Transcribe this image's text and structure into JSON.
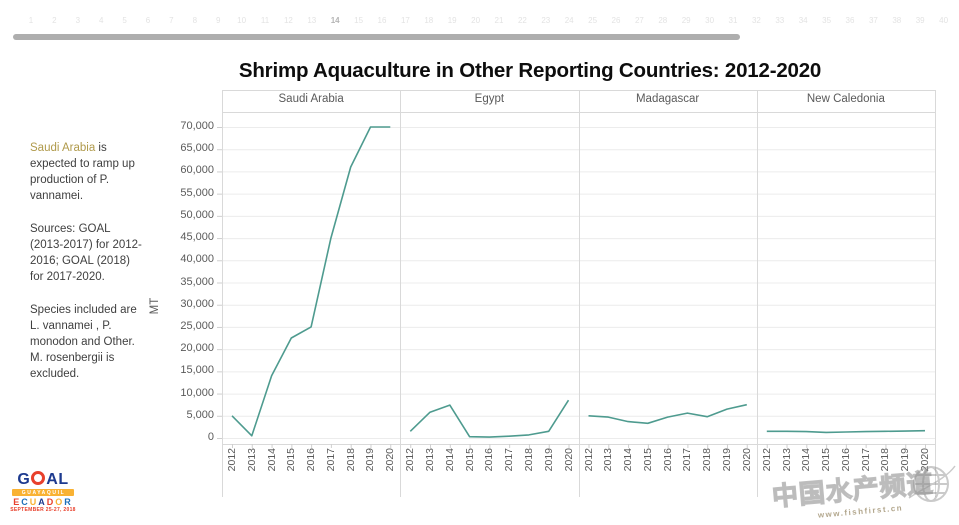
{
  "top_strip": {
    "slide_numbers": [
      "1",
      "2",
      "3",
      "4",
      "5",
      "6",
      "7",
      "8",
      "9",
      "10",
      "11",
      "12",
      "13",
      "14",
      "15",
      "16",
      "17",
      "18",
      "19",
      "20",
      "21",
      "22",
      "23",
      "24",
      "25",
      "26",
      "27",
      "28",
      "29",
      "30",
      "31",
      "32",
      "33",
      "34",
      "35",
      "36",
      "37",
      "38",
      "39",
      "40"
    ],
    "active_number": "14"
  },
  "header": {
    "title": "Shrimp Aquaculture in Other Reporting Countries: 2012-2020"
  },
  "sidebar": {
    "note_highlight": "Saudi Arabia",
    "note_rest": " is expected to ramp up production of P. vannamei.",
    "sources": "Sources: GOAL (2013-2017) for 2012-2016; GOAL (2018) for 2017-2020.",
    "species": "Species included are L. vannamei , P. monodon and Other.  M. rosenbergii is excluded."
  },
  "chart_data": {
    "type": "line",
    "title": "Shrimp Aquaculture in Other Reporting Countries: 2012-2020",
    "ylabel": "MT",
    "ylim": [
      0,
      70000
    ],
    "y_tick_step": 5000,
    "y_tick_labels": [
      "0",
      "5,000",
      "10,000",
      "15,000",
      "20,000",
      "25,000",
      "30,000",
      "35,000",
      "40,000",
      "45,000",
      "50,000",
      "55,000",
      "60,000",
      "65,000",
      "70,000"
    ],
    "x": [
      "2012",
      "2013",
      "2014",
      "2015",
      "2016",
      "2017",
      "2018",
      "2019",
      "2020"
    ],
    "panels": [
      "Saudi Arabia",
      "Egypt",
      "Madagascar",
      "New Caledonia"
    ],
    "series": [
      {
        "name": "Saudi Arabia",
        "values": [
          5000,
          500,
          14000,
          22500,
          25000,
          45000,
          61000,
          70000,
          70000
        ]
      },
      {
        "name": "Egypt",
        "values": [
          1500,
          5800,
          7400,
          300,
          200,
          400,
          700,
          1500,
          8500
        ]
      },
      {
        "name": "Madagascar",
        "values": [
          5000,
          4700,
          3700,
          3300,
          4700,
          5600,
          4800,
          6500,
          7500
        ]
      },
      {
        "name": "New Caledonia",
        "values": [
          1500,
          1500,
          1450,
          1250,
          1350,
          1450,
          1500,
          1550,
          1650
        ]
      }
    ],
    "line_color": "#4e9b8f",
    "grid": true,
    "legend": "none"
  },
  "colors": {
    "grid": "#ececec",
    "border": "#d9d9d9",
    "tick": "#cfcfcf",
    "axis_text": "#5a5a5a",
    "highlight_gold": "#b09a4b"
  },
  "footer_logo": {
    "word_g": "G",
    "word_a": "A",
    "word_l": "L",
    "banner": "GUAYAQUIL",
    "ecuador_letters": [
      "E",
      "C",
      "U",
      "A",
      "D",
      "O",
      "R"
    ],
    "ecuador_colors": [
      "#e8402c",
      "#1d6fb8",
      "#f9b233",
      "#1d3a8f",
      "#e8402c",
      "#f9b233",
      "#1d6fb8"
    ],
    "dates": "SEPTEMBER 25-27, 2018"
  },
  "watermark": {
    "text": "中国水产频道",
    "url": "www.fishfirst.cn"
  }
}
